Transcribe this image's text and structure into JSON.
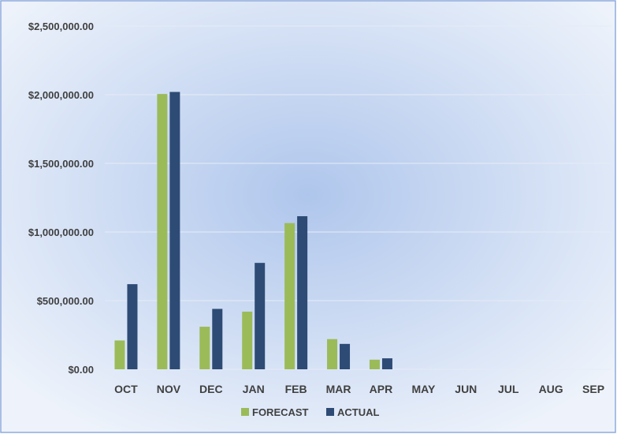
{
  "colors": {
    "forecast": "#9BBB59",
    "actual": "#2D4B75",
    "background_center": "#AFC6EC",
    "background_edge": "#EEF3FB",
    "border": "#8FAADC",
    "gridline": "#E6ECF6",
    "text": "#404040"
  },
  "chart_data": {
    "type": "bar",
    "title": "",
    "xlabel": "",
    "ylabel": "",
    "categories": [
      "OCT",
      "NOV",
      "DEC",
      "JAN",
      "FEB",
      "MAR",
      "APR",
      "MAY",
      "JUN",
      "JUL",
      "AUG",
      "SEP"
    ],
    "series": [
      {
        "name": "FORECAST",
        "values": [
          210000,
          2005000,
          310000,
          420000,
          1065000,
          220000,
          70000,
          0,
          0,
          0,
          0,
          0
        ]
      },
      {
        "name": "ACTUAL",
        "values": [
          620000,
          2020000,
          440000,
          775000,
          1115000,
          185000,
          80000,
          0,
          0,
          0,
          0,
          0
        ]
      }
    ],
    "ylim": [
      0,
      2500000
    ],
    "yticks": [
      0,
      500000,
      1000000,
      1500000,
      2000000,
      2500000
    ],
    "ytick_labels": [
      "$0.00",
      "$500,000.00",
      "$1,000,000.00",
      "$1,500,000.00",
      "$2,000,000.00",
      "$2,500,000.00"
    ],
    "grid": true,
    "legend_position": "bottom"
  }
}
